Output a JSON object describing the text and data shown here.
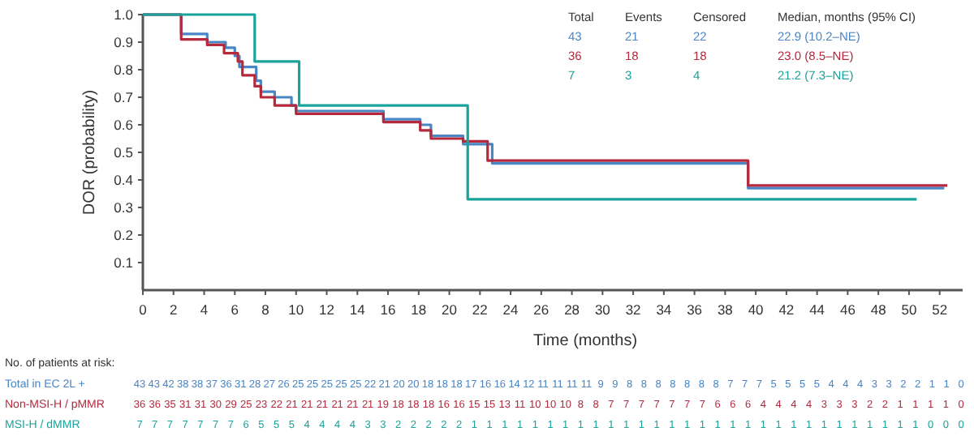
{
  "chart_data": {
    "type": "step",
    "xlabel": "Time (months)",
    "ylabel": "DOR (probability)",
    "xlim": [
      0,
      53.5
    ],
    "xticks": [
      0,
      2,
      4,
      6,
      8,
      10,
      12,
      14,
      16,
      18,
      20,
      22,
      24,
      26,
      28,
      30,
      32,
      34,
      36,
      38,
      40,
      42,
      44,
      46,
      48,
      50,
      52
    ],
    "ylim": [
      0,
      1.0
    ],
    "yticks": [
      0.1,
      0.2,
      0.3,
      0.4,
      0.5,
      0.6,
      0.7,
      0.8,
      0.9,
      {
        "value": 1.0,
        "label": "1.0"
      }
    ],
    "grid": false,
    "series": [
      {
        "color": "#4a86c5",
        "x": [
          0,
          2.5,
          4.2,
          5.4,
          6.0,
          6.3,
          7.4,
          7.7,
          8.6,
          9.7,
          10.0,
          15.7,
          18.1,
          18.8,
          20.9,
          22.8,
          39.5,
          52.3
        ],
        "values": [
          1.0,
          0.93,
          0.9,
          0.88,
          0.85,
          0.81,
          0.76,
          0.72,
          0.7,
          0.67,
          0.65,
          0.62,
          0.6,
          0.56,
          0.53,
          0.46,
          0.37,
          0.37
        ]
      },
      {
        "color": "#b5293d",
        "x": [
          0,
          2.5,
          4.2,
          5.3,
          6.2,
          6.5,
          7.3,
          7.7,
          8.6,
          10.0,
          15.7,
          18.1,
          18.8,
          20.9,
          22.5,
          39.5,
          52.5
        ],
        "values": [
          1.0,
          0.91,
          0.89,
          0.86,
          0.83,
          0.78,
          0.74,
          0.7,
          0.67,
          0.64,
          0.61,
          0.58,
          0.55,
          0.54,
          0.47,
          0.38,
          0.38
        ]
      },
      {
        "color": "#1aa39a",
        "x": [
          0,
          7.3,
          10.2,
          21.2,
          50.5
        ],
        "values": [
          1.0,
          0.83,
          0.67,
          0.33,
          0.33
        ]
      }
    ],
    "annotations": [
      "Total",
      "Events",
      "Censored",
      "Median, months (95% CI)",
      "43",
      "21",
      "22",
      "22.9 (10.2–NE)",
      "36",
      "18",
      "18",
      "23.0 (8.5–NE)",
      "7",
      "3",
      "4",
      "21.2 (7.3–NE)",
      "No. of patients at risk:",
      "Total in EC 2L +",
      "Non-MSI-H / pMMR",
      "MSI-H / dMMR",
      "43 43 42 38 38 37 36 31 28 27 26 25 25 25 25 25 22 21 20 20 18 18 18 17 16 16 14 12 11 11 11 11 9 9 8 8 8 8 8 8 8 7 7 7 5 5 5 5 4 4 4 3 3 2 2 1 1 0",
      "36 36 35 31 31 30 29 25 23 22 21 21 21 21 21 21 19 18 18 18 16 16 15 15 13 11 10 10 10 8 8 7 7 7 7 7 7 7 6 6 6 4 4 4 4 3 3 3 2 2 1 1 1 1 0",
      "7 7 7 7 7 7 7 6 5 5 5 4 4 4 4 3 3 2 2 2 2 2 1 1 1 1 1 1 1 1 1 1 1 1 1 1 1 1 1 1 1 1 1 1 1 1 1 1 1 1 1 1 0 0 0"
    ]
  }
}
